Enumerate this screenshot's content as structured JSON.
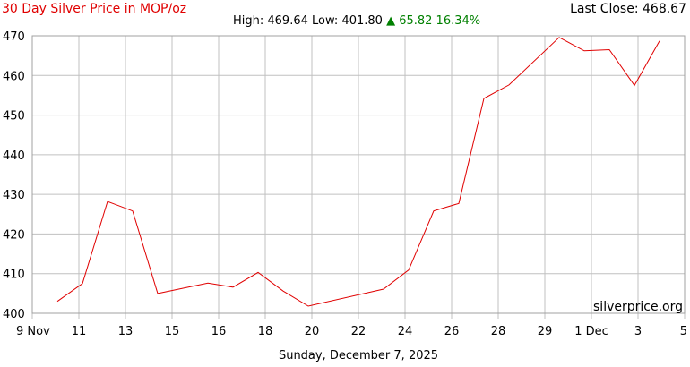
{
  "header": {
    "title": "30 Day Silver Price in MOP/oz",
    "last_close": "Last Close: 468.67",
    "high": "High: 469.64",
    "low": "Low: 401.80",
    "change_arrow": "▲",
    "change": "65.82 16.34%"
  },
  "footer": {
    "date": "Sunday, December 7, 2025"
  },
  "watermark": "silverprice.org",
  "colors": {
    "line": "#e00000",
    "title": "#e00000",
    "change": "#008000",
    "grid": "#c0c0c0"
  },
  "chart_data": {
    "type": "line",
    "title": "30 Day Silver Price in MOP/oz",
    "xlabel": "",
    "ylabel": "",
    "ylim": [
      400,
      470
    ],
    "grid": true,
    "x_ticks": [
      "9 Nov",
      "11",
      "13",
      "15",
      "16",
      "18",
      "20",
      "22",
      "24",
      "26",
      "28",
      "29",
      "1 Dec",
      "3",
      "5"
    ],
    "y_ticks": [
      400,
      410,
      420,
      430,
      440,
      450,
      460,
      470
    ],
    "series": [
      {
        "x": [
          "Nov 10",
          "Nov 11",
          "Nov 12",
          "Nov 13",
          "Nov 14",
          "Nov 16",
          "Nov 17",
          "Nov 18",
          "Nov 19",
          "Nov 20",
          "Nov 23",
          "Nov 24",
          "Nov 25",
          "Nov 26",
          "Nov 27",
          "Nov 28",
          "Nov 30",
          "Dec 1",
          "Dec 2",
          "Dec 3",
          "Dec 4"
        ],
        "values": [
          403.0,
          407.5,
          428.2,
          425.8,
          405.0,
          407.6,
          406.6,
          410.3,
          405.6,
          401.8,
          406.1,
          410.9,
          425.8,
          427.7,
          454.2,
          457.6,
          469.6,
          466.2,
          466.5,
          457.5,
          468.7
        ]
      }
    ]
  }
}
